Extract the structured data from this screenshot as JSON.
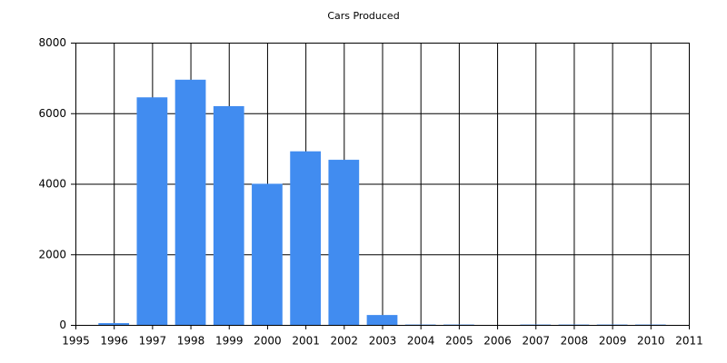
{
  "chart_data": {
    "type": "bar",
    "title": "Cars Produced",
    "x": [
      1996,
      1997,
      1998,
      1999,
      2000,
      2001,
      2002,
      2003,
      2004,
      2005,
      2006,
      2007,
      2008,
      2009,
      2010
    ],
    "values": [
      50,
      6450,
      6950,
      6200,
      4000,
      4920,
      4680,
      280,
      10,
      10,
      0,
      10,
      10,
      10,
      10
    ],
    "color": "#418cf0",
    "xlim": [
      1995,
      2011
    ],
    "xticks": [
      1995,
      1996,
      1997,
      1998,
      1999,
      2000,
      2001,
      2002,
      2003,
      2004,
      2005,
      2006,
      2007,
      2008,
      2009,
      2010,
      2011
    ],
    "ylim": [
      0,
      8000
    ],
    "yticks": [
      0,
      2000,
      4000,
      6000,
      8000
    ],
    "grid": true
  }
}
